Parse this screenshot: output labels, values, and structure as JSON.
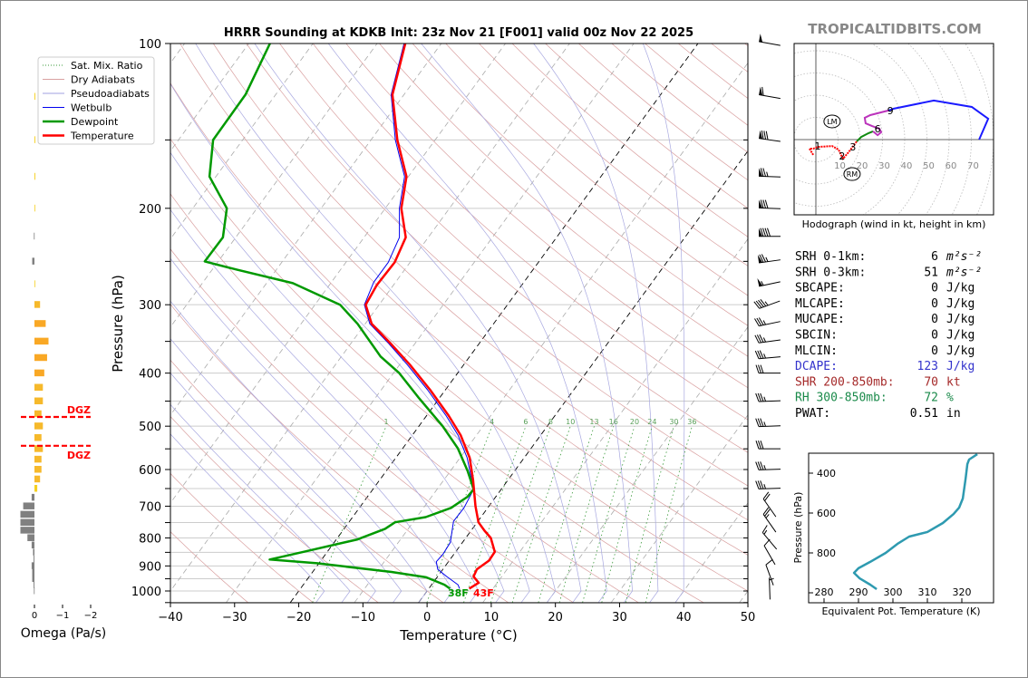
{
  "title": "HRRR Sounding at KDKB Init: 23z Nov 21 [F001] valid 00z Nov 22 2025",
  "watermark": "TROPICALTIDBITS.COM",
  "legend": [
    {
      "label": "Sat. Mix. Ratio",
      "color": "#3a9a3a",
      "style": "dotted"
    },
    {
      "label": "Dry Adiabats",
      "color": "#d9a0a0",
      "style": "solid"
    },
    {
      "label": "Pseudoadiabats",
      "color": "#a0a0e0",
      "style": "solid"
    },
    {
      "label": "Wetbulb",
      "color": "#0000ee",
      "style": "solid"
    },
    {
      "label": "Dewpoint",
      "color": "#009900",
      "style": "thick"
    },
    {
      "label": "Temperature",
      "color": "#ff0000",
      "style": "thick"
    }
  ],
  "stats": [
    {
      "label": "SRH 0-1km:",
      "value": "6",
      "unit": "m²s⁻²",
      "color": "#000000"
    },
    {
      "label": "SRH 0-3km:",
      "value": "51",
      "unit": "m²s⁻²",
      "color": "#000000"
    },
    {
      "label": "SBCAPE:",
      "value": "0",
      "unit": "J/kg",
      "color": "#000000"
    },
    {
      "label": "MLCAPE:",
      "value": "0",
      "unit": "J/kg",
      "color": "#000000"
    },
    {
      "label": "MUCAPE:",
      "value": "0",
      "unit": "J/kg",
      "color": "#000000"
    },
    {
      "label": "SBCIN:",
      "value": "0",
      "unit": "J/kg",
      "color": "#000000"
    },
    {
      "label": "MLCIN:",
      "value": "0",
      "unit": "J/kg",
      "color": "#000000"
    },
    {
      "label": "DCAPE:",
      "value": "123",
      "unit": "J/kg",
      "color": "#3333cc"
    },
    {
      "label": "SHR 200-850mb:",
      "value": "70",
      "unit": "kt",
      "color": "#a52a2a"
    },
    {
      "label": "RH 300-850mb:",
      "value": "72",
      "unit": "%",
      "color": "#1a8a4a"
    },
    {
      "label": "PWAT:",
      "value": "0.51",
      "unit": "in",
      "color": "#000000"
    }
  ],
  "chart_data": [
    {
      "type": "line",
      "name": "skew-t",
      "xlabel": "Temperature (°C)",
      "ylabel": "Pressure (hPa)",
      "xlim": [
        -40,
        50
      ],
      "ylim": [
        1050,
        100
      ],
      "xticks": [
        "−40",
        "−30",
        "−20",
        "−10",
        "0",
        "10",
        "20",
        "30",
        "40",
        "50"
      ],
      "yticks": [
        100,
        200,
        300,
        400,
        500,
        600,
        700,
        800,
        900,
        1000
      ],
      "highlight_isotherms": [
        -20,
        0
      ],
      "mixing_ratio_labels": [
        "1",
        "4",
        "6",
        "8",
        "10",
        "13",
        "16",
        "20",
        "24",
        "30",
        "36"
      ],
      "surface_labels": {
        "dewpoint": "38F",
        "temperature": "43F"
      },
      "series": [
        {
          "name": "Temperature",
          "color": "#ff0000",
          "points": [
            [
              100,
              -65.6
            ],
            [
              124,
              -61.8
            ],
            [
              150,
              -55.9
            ],
            [
              175,
              -50.3
            ],
            [
              200,
              -47.5
            ],
            [
              226,
              -43.5
            ],
            [
              251,
              -42.4
            ],
            [
              276,
              -42.6
            ],
            [
              300,
              -42.1
            ],
            [
              325,
              -39.0
            ],
            [
              352,
              -34.0
            ],
            [
              386,
              -28.4
            ],
            [
              429,
              -22.4
            ],
            [
              478,
              -16.6
            ],
            [
              519,
              -12.5
            ],
            [
              571,
              -8.5
            ],
            [
              628,
              -5.4
            ],
            [
              700,
              -2.1
            ],
            [
              749,
              0.2
            ],
            [
              776,
              2.1
            ],
            [
              800,
              3.9
            ],
            [
              848,
              6.1
            ],
            [
              880,
              6.2
            ],
            [
              913,
              5.3
            ],
            [
              941,
              5.6
            ],
            [
              966,
              7.1
            ],
            [
              990,
              6.3
            ]
          ]
        },
        {
          "name": "Dewpoint",
          "color": "#009900",
          "points": [
            [
              100,
              -86.7
            ],
            [
              124,
              -84.7
            ],
            [
              150,
              -84.6
            ],
            [
              175,
              -81.0
            ],
            [
              200,
              -74.7
            ],
            [
              226,
              -72.0
            ],
            [
              250,
              -72.1
            ],
            [
              259,
              -66.1
            ],
            [
              274,
              -55.9
            ],
            [
              300,
              -46.1
            ],
            [
              325,
              -41.2
            ],
            [
              373,
              -33.9
            ],
            [
              400,
              -29.1
            ],
            [
              445,
              -23.1
            ],
            [
              500,
              -16.3
            ],
            [
              549,
              -11.4
            ],
            [
              604,
              -7.3
            ],
            [
              652,
              -4.3
            ],
            [
              673,
              -4.4
            ],
            [
              705,
              -5.7
            ],
            [
              733,
              -8.6
            ],
            [
              749,
              -12.8
            ],
            [
              770,
              -13.6
            ],
            [
              805,
              -16.7
            ],
            [
              848,
              -23.7
            ],
            [
              876,
              -28.1
            ],
            [
              890,
              -20.3
            ],
            [
              923,
              -7.7
            ],
            [
              944,
              -1.7
            ],
            [
              974,
              2.0
            ],
            [
              990,
              3.3
            ]
          ]
        },
        {
          "name": "Wetbulb",
          "color": "#0000ee",
          "points": [
            [
              100,
              -65.8
            ],
            [
              124,
              -62.0
            ],
            [
              150,
              -56.2
            ],
            [
              175,
              -50.6
            ],
            [
              200,
              -47.8
            ],
            [
              226,
              -44.5
            ],
            [
              251,
              -43.4
            ],
            [
              273,
              -43.4
            ],
            [
              300,
              -42.3
            ],
            [
              325,
              -39.3
            ],
            [
              352,
              -34.3
            ],
            [
              386,
              -28.8
            ],
            [
              429,
              -22.8
            ],
            [
              478,
              -17.0
            ],
            [
              519,
              -12.9
            ],
            [
              571,
              -8.9
            ],
            [
              628,
              -5.6
            ],
            [
              652,
              -4.3
            ],
            [
              705,
              -3.7
            ],
            [
              746,
              -3.8
            ],
            [
              815,
              -1.9
            ],
            [
              857,
              -1.7
            ],
            [
              884,
              -1.9
            ],
            [
              913,
              -0.8
            ],
            [
              941,
              1.4
            ],
            [
              974,
              4.1
            ],
            [
              990,
              4.8
            ]
          ]
        }
      ],
      "winds": [
        {
          "p": 100,
          "dir": 280,
          "spd": 50
        },
        {
          "p": 125,
          "dir": 280,
          "spd": 60
        },
        {
          "p": 150,
          "dir": 278,
          "spd": 80
        },
        {
          "p": 175,
          "dir": 272,
          "spd": 75
        },
        {
          "p": 200,
          "dir": 272,
          "spd": 80
        },
        {
          "p": 225,
          "dir": 270,
          "spd": 90
        },
        {
          "p": 250,
          "dir": 262,
          "spd": 75
        },
        {
          "p": 275,
          "dir": 258,
          "spd": 55
        },
        {
          "p": 300,
          "dir": 250,
          "spd": 45
        },
        {
          "p": 325,
          "dir": 258,
          "spd": 35
        },
        {
          "p": 350,
          "dir": 262,
          "spd": 35
        },
        {
          "p": 375,
          "dir": 265,
          "spd": 35
        },
        {
          "p": 400,
          "dir": 270,
          "spd": 30
        },
        {
          "p": 450,
          "dir": 268,
          "spd": 35
        },
        {
          "p": 500,
          "dir": 268,
          "spd": 35
        },
        {
          "p": 550,
          "dir": 270,
          "spd": 30
        },
        {
          "p": 600,
          "dir": 268,
          "spd": 35
        },
        {
          "p": 650,
          "dir": 268,
          "spd": 35
        },
        {
          "p": 705,
          "dir": 325,
          "spd": 20
        },
        {
          "p": 752,
          "dir": 325,
          "spd": 25
        },
        {
          "p": 810,
          "dir": 320,
          "spd": 15
        },
        {
          "p": 860,
          "dir": 330,
          "spd": 10
        },
        {
          "p": 935,
          "dir": 340,
          "spd": 10
        },
        {
          "p": 990,
          "dir": 358,
          "spd": 5
        }
      ]
    },
    {
      "type": "line",
      "name": "hodograph",
      "xlabel": "Hodograph (wind in kt, height in km)",
      "ring_labels": [
        "10",
        "20",
        "30",
        "40",
        "50",
        "60",
        "70"
      ],
      "segments": [
        {
          "color": "#ff0000",
          "points": [
            [
              -1.2,
              -6.9
            ],
            [
              -2.9,
              -4.1
            ],
            [
              -1.2,
              -4.1
            ],
            [
              0.8,
              -3.3
            ],
            [
              7.3,
              -2.9
            ],
            [
              10.2,
              -4.5
            ],
            [
              12.2,
              -8.6
            ],
            [
              14.7,
              -5.7
            ],
            [
              18.4,
              -0.8
            ]
          ]
        },
        {
          "color": "#108a10",
          "points": [
            [
              18.4,
              -0.8
            ],
            [
              20.4,
              1.2
            ],
            [
              23.7,
              2.9
            ],
            [
              25.7,
              3.7
            ]
          ]
        },
        {
          "color": "#bb33bb",
          "points": [
            [
              25.7,
              3.7
            ],
            [
              27.8,
              2.0
            ],
            [
              29.4,
              3.3
            ],
            [
              28.6,
              4.9
            ],
            [
              25.3,
              6.1
            ],
            [
              22.4,
              7.3
            ],
            [
              22.0,
              9.8
            ],
            [
              24.5,
              11.0
            ],
            [
              32.7,
              13.1
            ]
          ]
        },
        {
          "color": "#1a1aff",
          "points": [
            [
              32.7,
              13.1
            ],
            [
              35.1,
              13.9
            ],
            [
              53.1,
              17.6
            ],
            [
              70.2,
              14.7
            ],
            [
              77.6,
              9.4
            ],
            [
              73.5,
              0
            ]
          ]
        }
      ],
      "height_labels": [
        {
          "text": "1",
          "u": 0.8,
          "v": -2.9
        },
        {
          "text": "2",
          "u": 11.8,
          "v": -7.3
        },
        {
          "text": "3",
          "u": 16.7,
          "v": -3.3
        },
        {
          "text": "6",
          "u": 27.8,
          "v": 4.9
        },
        {
          "text": "9",
          "u": 33.5,
          "v": 13.1
        }
      ],
      "storm_motion": [
        {
          "text": "LM",
          "u": 7.3,
          "v": 9.0
        },
        {
          "text": "RM",
          "u": 16.3,
          "v": -14.7
        }
      ]
    },
    {
      "type": "line",
      "name": "theta-e-profile",
      "xlabel": "Equivalent Pot. Temperature (K)",
      "ylabel": "Pressure (hPa)",
      "xticks": [
        "280",
        "290",
        "300",
        "310",
        "320"
      ],
      "yticks": [
        "400",
        "600",
        "800"
      ],
      "color": "#2e9ab0",
      "points": [
        [
          305,
          324.5
        ],
        [
          332,
          322.1
        ],
        [
          355,
          321.6
        ],
        [
          427,
          321.1
        ],
        [
          527,
          320.3
        ],
        [
          573,
          319.2
        ],
        [
          605,
          317.6
        ],
        [
          650,
          314.5
        ],
        [
          695,
          310.0
        ],
        [
          718,
          304.7
        ],
        [
          755,
          301.3
        ],
        [
          800,
          297.9
        ],
        [
          845,
          293.4
        ],
        [
          877,
          290.0
        ],
        [
          900,
          288.7
        ],
        [
          927,
          290.3
        ],
        [
          959,
          293.4
        ],
        [
          982,
          295.3
        ]
      ]
    },
    {
      "type": "bar",
      "name": "omega",
      "xlabel": "Omega (Pa/s)",
      "xticks": [
        "0",
        "−1",
        "−2"
      ],
      "dgz_label": "DGZ",
      "dgz_bounds": [
        481,
        543
      ],
      "pressure": [
        125,
        150,
        175,
        200,
        225,
        250,
        275,
        300,
        325,
        350,
        375,
        400,
        425,
        450,
        475,
        500,
        525,
        550,
        575,
        600,
        625,
        650,
        675,
        700,
        725,
        750,
        775,
        800,
        825,
        850,
        875,
        900,
        925,
        950,
        975,
        1000
      ],
      "values": [
        -0.03,
        -0.03,
        -0.03,
        -0.02,
        0.02,
        0.08,
        -0.02,
        -0.2,
        -0.4,
        -0.5,
        -0.45,
        -0.35,
        -0.3,
        -0.3,
        -0.25,
        -0.3,
        -0.25,
        -0.3,
        -0.25,
        -0.25,
        -0.2,
        -0.1,
        0.1,
        0.4,
        0.5,
        0.5,
        0.5,
        0.25,
        0.1,
        0.05,
        0.03,
        0.1,
        0.08,
        0.08,
        0.03,
        0.02
      ]
    }
  ]
}
